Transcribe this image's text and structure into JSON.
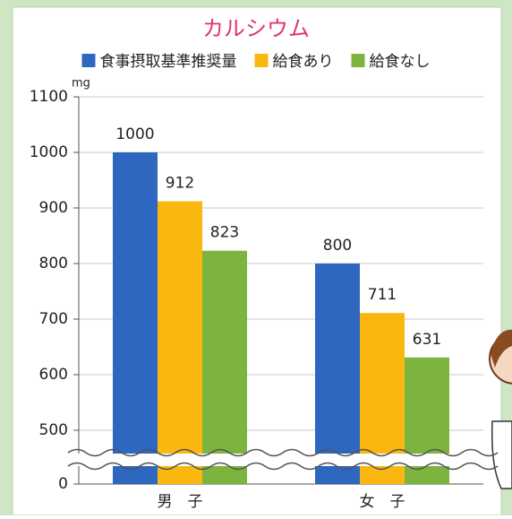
{
  "chart_data": {
    "type": "bar",
    "title": "カルシウム",
    "y_label": "mg",
    "categories": [
      "男　子",
      "女　子"
    ],
    "series": [
      {
        "name": "食事摂取基準推奨量",
        "color": "#2e67c0",
        "values": [
          1000,
          800
        ]
      },
      {
        "name": "給食あり",
        "color": "#f9b70f",
        "values": [
          912,
          711
        ]
      },
      {
        "name": "給食なし",
        "color": "#7db43f",
        "values": [
          823,
          631
        ]
      }
    ],
    "ylim": [
      0,
      1100
    ],
    "yticks": [
      0,
      500,
      600,
      700,
      800,
      900,
      1000,
      1100
    ],
    "axis_break": [
      0,
      500
    ],
    "grid": true,
    "legend": "top"
  }
}
